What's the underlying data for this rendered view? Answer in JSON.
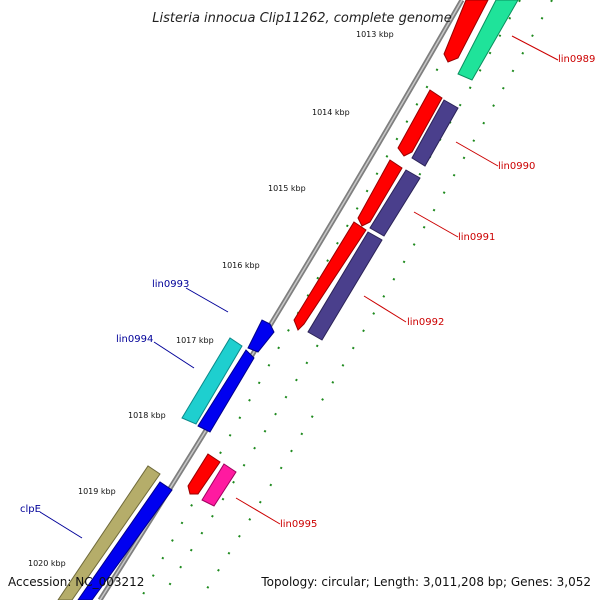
{
  "title": "Listeria innocua Clip11262, complete genome",
  "footer": {
    "accession": "Accession: NC_003212",
    "summary": "Topology: circular; Length: 3,011,208 bp; Genes: 3,052"
  },
  "ticks": [
    {
      "label": "1013 kbp"
    },
    {
      "label": "1014 kbp"
    },
    {
      "label": "1015 kbp"
    },
    {
      "label": "1016 kbp"
    },
    {
      "label": "1017 kbp"
    },
    {
      "label": "1018 kbp"
    },
    {
      "label": "1019 kbp"
    },
    {
      "label": "1020 kbp"
    }
  ],
  "genes_right": [
    {
      "label": "lin0989"
    },
    {
      "label": "lin0990"
    },
    {
      "label": "lin0991"
    },
    {
      "label": "lin0992"
    },
    {
      "label": "lin0995"
    }
  ],
  "genes_left": [
    {
      "label": "lin0993"
    },
    {
      "label": "lin0994"
    },
    {
      "label": "clpE"
    }
  ],
  "colors": {
    "backbone": "#7f7f7f",
    "tick_dots": "#1e8a1e",
    "gene_red": "#ff0000",
    "gene_slate": "#4a3f8c",
    "gene_mint": "#1fe39a",
    "gene_blue": "#0000f0",
    "gene_cyan": "#1ecfcf",
    "gene_magenta": "#ff1aa0",
    "gene_khaki": "#b5ad6a",
    "label_red": "#cc0000",
    "label_blue": "#000099"
  }
}
